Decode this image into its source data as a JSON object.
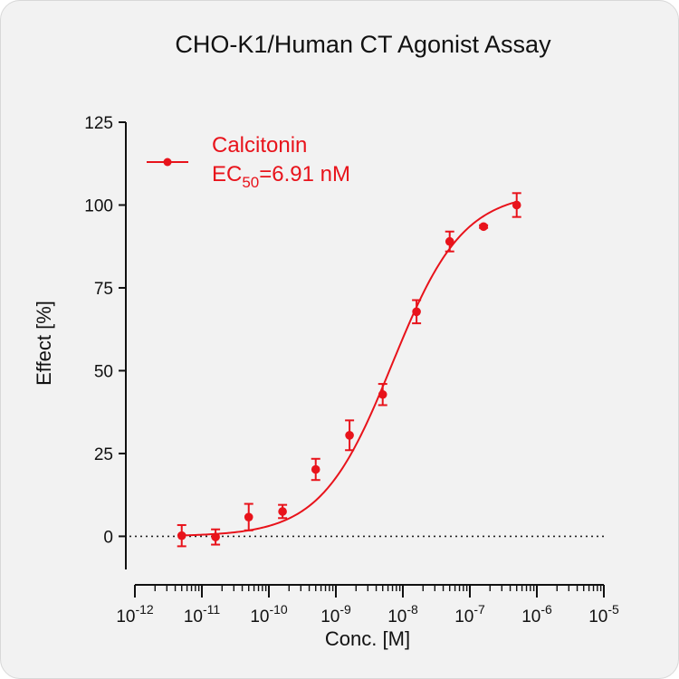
{
  "chart_data": {
    "type": "scatter",
    "title": "CHO-K1/Human CT Agonist Assay",
    "xlabel": "Conc. [M]",
    "ylabel": "Effect  [%]",
    "x_scale": "log",
    "xlim": [
      1e-12,
      1e-05
    ],
    "ylim": [
      -10,
      125
    ],
    "x_ticks": [
      {
        "base": "10",
        "exp": "-12",
        "value": 1e-12
      },
      {
        "base": "10",
        "exp": "-11",
        "value": 1e-11
      },
      {
        "base": "10",
        "exp": "-10",
        "value": 1e-10
      },
      {
        "base": "10",
        "exp": "-9",
        "value": 1e-09
      },
      {
        "base": "10",
        "exp": "-8",
        "value": 1e-08
      },
      {
        "base": "10",
        "exp": "-7",
        "value": 1e-07
      },
      {
        "base": "10",
        "exp": "-6",
        "value": 1e-06
      },
      {
        "base": "10",
        "exp": "-5",
        "value": 1e-05
      }
    ],
    "y_ticks": [
      {
        "label": "0",
        "value": 0
      },
      {
        "label": "25",
        "value": 25
      },
      {
        "label": "50",
        "value": 50
      },
      {
        "label": "75",
        "value": 75
      },
      {
        "label": "100",
        "value": 100
      },
      {
        "label": "125",
        "value": 125
      }
    ],
    "reference_line": {
      "y": 0,
      "style": "dotted"
    },
    "grid": false,
    "legend_position": "top-left",
    "series": [
      {
        "name": "Calcitonin",
        "color": "#e8131b",
        "ec50_label_main": "EC",
        "ec50_label_sub": "50",
        "ec50_label_value": "=6.91 nM",
        "points": [
          {
            "x": 5e-12,
            "y": 0.2,
            "err": 3.2
          },
          {
            "x": 1.6e-11,
            "y": -0.2,
            "err": 2.3
          },
          {
            "x": 5e-11,
            "y": 5.8,
            "err": 4.0
          },
          {
            "x": 1.6e-10,
            "y": 7.5,
            "err": 2.0
          },
          {
            "x": 5e-10,
            "y": 20.2,
            "err": 3.2
          },
          {
            "x": 1.6e-09,
            "y": 30.5,
            "err": 4.5
          },
          {
            "x": 5e-09,
            "y": 42.8,
            "err": 3.2
          },
          {
            "x": 1.6e-08,
            "y": 67.8,
            "err": 3.5
          },
          {
            "x": 5e-08,
            "y": 89.0,
            "err": 3.0
          },
          {
            "x": 1.6e-07,
            "y": 93.5,
            "err": 0.4
          },
          {
            "x": 5e-07,
            "y": 100.0,
            "err": 3.6
          }
        ],
        "fit": {
          "model": "four-parameter-logistic",
          "bottom": 0,
          "top": 104,
          "ec50": 6.91e-09,
          "hill": 0.82
        }
      }
    ]
  }
}
